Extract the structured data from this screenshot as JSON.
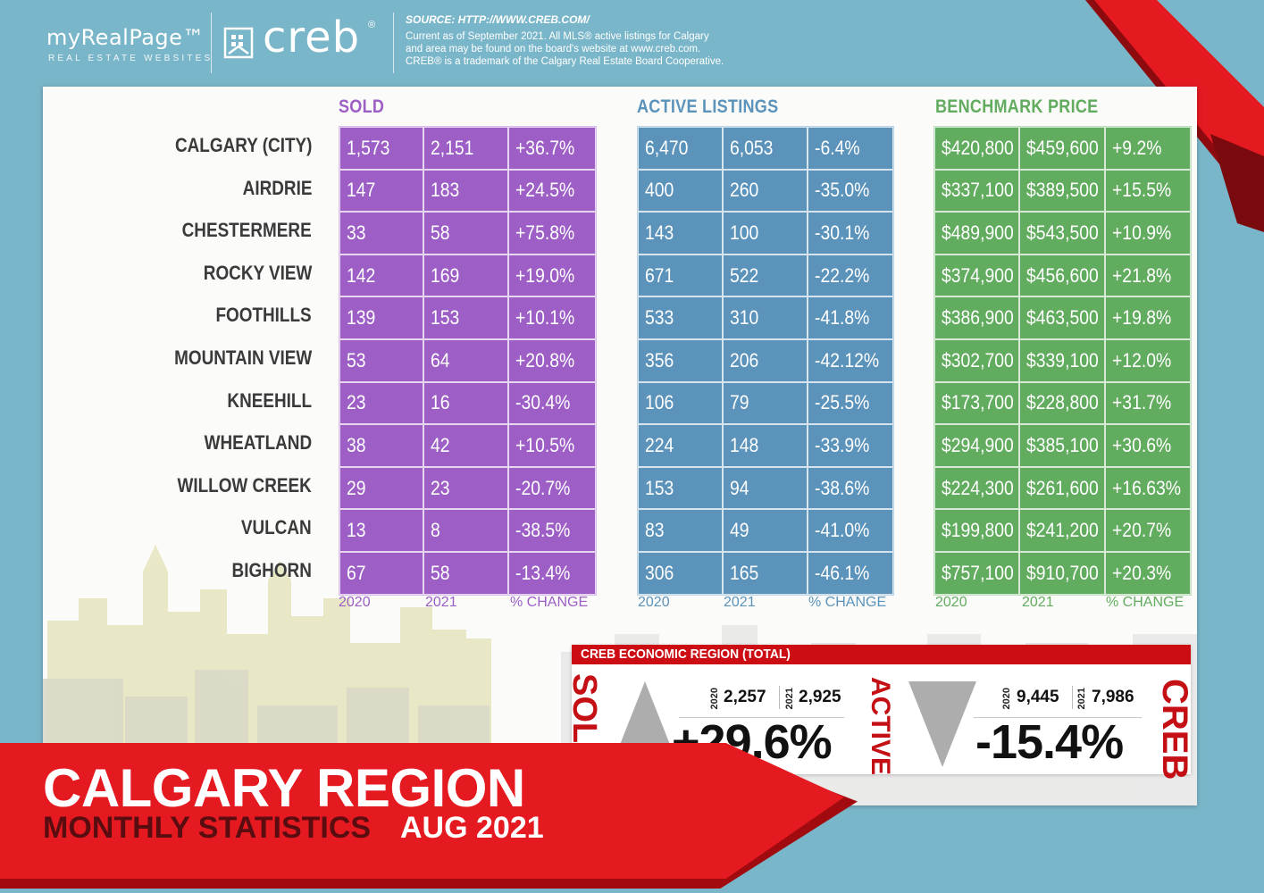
{
  "header": {
    "brand_primary": "myRealPage™",
    "brand_sub": "REAL ESTATE WEBSITES",
    "brand_secondary": "creb",
    "brand_secondary_mark": "®",
    "source_title": "SOURCE: HTTP://WWW.CREB.COM/",
    "source_lines": [
      "Current as of September 2021.  All MLS® active listings for Calgary",
      "and area may be found on the board's website at www.creb.com.",
      "CREB® is a trademark of the Calgary Real Estate Board Cooperative."
    ]
  },
  "sections": {
    "sold": {
      "title": "SOLD",
      "color": "#9d5ec6"
    },
    "active": {
      "title": "ACTIVE LISTINGS",
      "color": "#5b93bb"
    },
    "benchmark": {
      "title": "BENCHMARK PRICE",
      "color": "#62ac5f"
    }
  },
  "year_labels": [
    "2020",
    "2021",
    "% CHANGE"
  ],
  "regions": [
    "CALGARY (CITY)",
    "AIRDRIE",
    "CHESTERMERE",
    "ROCKY VIEW",
    "FOOTHILLS",
    "MOUNTAIN VIEW",
    "KNEEHILL",
    "WHEATLAND",
    "WILLOW CREEK",
    "VULCAN",
    "BIGHORN"
  ],
  "sold_rows": [
    [
      "1,573",
      "2,151",
      "+36.7%"
    ],
    [
      "147",
      "183",
      "+24.5%"
    ],
    [
      "33",
      "58",
      "+75.8%"
    ],
    [
      "142",
      "169",
      "+19.0%"
    ],
    [
      "139",
      "153",
      "+10.1%"
    ],
    [
      "53",
      "64",
      "+20.8%"
    ],
    [
      "23",
      "16",
      "-30.4%"
    ],
    [
      "38",
      "42",
      "+10.5%"
    ],
    [
      "29",
      "23",
      "-20.7%"
    ],
    [
      "13",
      "8",
      "-38.5%"
    ],
    [
      "67",
      "58",
      "-13.4%"
    ]
  ],
  "active_rows": [
    [
      "6,470",
      "6,053",
      "-6.4%"
    ],
    [
      "400",
      "260",
      "-35.0%"
    ],
    [
      "143",
      "100",
      "-30.1%"
    ],
    [
      "671",
      "522",
      "-22.2%"
    ],
    [
      "533",
      "310",
      "-41.8%"
    ],
    [
      "356",
      "206",
      "-42.12%"
    ],
    [
      "106",
      "79",
      "-25.5%"
    ],
    [
      "224",
      "148",
      "-33.9%"
    ],
    [
      "153",
      "94",
      "-38.6%"
    ],
    [
      "83",
      "49",
      "-41.0%"
    ],
    [
      "306",
      "165",
      "-46.1%"
    ]
  ],
  "benchmark_rows": [
    [
      "$420,800",
      "$459,600",
      "+9.2%"
    ],
    [
      "$337,100",
      "$389,500",
      "+15.5%"
    ],
    [
      "$489,900",
      "$543,500",
      "+10.9%"
    ],
    [
      "$374,900",
      "$456,600",
      "+21.8%"
    ],
    [
      "$386,900",
      "$463,500",
      "+19.8%"
    ],
    [
      "$302,700",
      "$339,100",
      "+12.0%"
    ],
    [
      "$173,700",
      "$228,800",
      "+31.7%"
    ],
    [
      "$294,900",
      "$385,100",
      "+30.6%"
    ],
    [
      "$224,300",
      "$261,600",
      "+16.63%"
    ],
    [
      "$199,800",
      "$241,200",
      "+20.7%"
    ],
    [
      "$757,100",
      "$910,700",
      "+20.3%"
    ]
  ],
  "totals": {
    "title": "CREB ECONOMIC REGION (TOTAL)",
    "sold": {
      "label": "SOLD",
      "y2020_label": "2020",
      "y2020": "2,257",
      "y2021_label": "2021",
      "y2021": "2,925",
      "change": "+29.6%",
      "direction": "up"
    },
    "active": {
      "label": "ACTIVE",
      "y2020_label": "2020",
      "y2020": "9,445",
      "y2021_label": "2021",
      "y2021": "7,986",
      "change": "-15.4%",
      "direction": "down"
    },
    "side_logo": "CREB"
  },
  "banner": {
    "title": "CALGARY REGION",
    "subtitle": "MONTHLY STATISTICS",
    "date": "AUG 2021"
  },
  "colors": {
    "background": "#7ab6c9",
    "accent_red": "#e51920",
    "dark_red": "#a10b10"
  }
}
